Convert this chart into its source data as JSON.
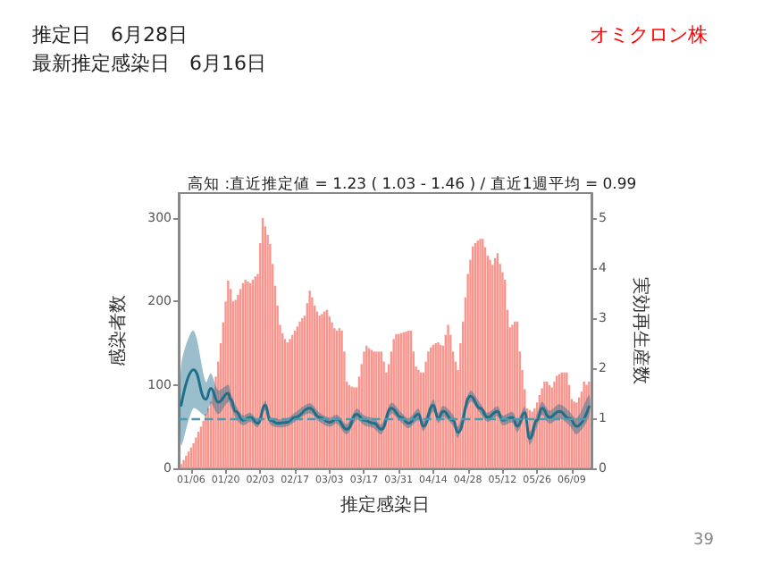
{
  "chart_data": {
    "type": "bar",
    "title": "高知 :直近推定値 = 1.23 ( 1.03 - 1.46 ) / 直近1週平均 = 0.99",
    "annotations": [
      "推定日　6月28日",
      "最新推定感染日　6月16日",
      "オミクロン株",
      "39"
    ],
    "xlabel": "推定感染日",
    "ylabel": "感染者数",
    "y2label": "実効再生産数",
    "xlim": [
      "--01-01",
      "--06-17"
    ],
    "xticks": [
      {
        "value": "--01-06",
        "label": "01/06"
      },
      {
        "value": "--01-20",
        "label": "01/20"
      },
      {
        "value": "--02-03",
        "label": "02/03"
      },
      {
        "value": "--02-17",
        "label": "02/17"
      },
      {
        "value": "--03-03",
        "label": "03/03"
      },
      {
        "value": "--03-17",
        "label": "03/17"
      },
      {
        "value": "--03-31",
        "label": "03/31"
      },
      {
        "value": "--04-14",
        "label": "04/14"
      },
      {
        "value": "--04-28",
        "label": "04/28"
      },
      {
        "value": "--05-12",
        "label": "05/12"
      },
      {
        "value": "--05-26",
        "label": "05/26"
      },
      {
        "value": "--06-09",
        "label": "06/09"
      }
    ],
    "ylim": [
      0,
      330
    ],
    "yticks": [
      0,
      100,
      200,
      300
    ],
    "y2lim": [
      0,
      5.5
    ],
    "y2ticks": [
      0,
      1,
      2,
      3,
      4,
      5
    ],
    "x": [
      "--01-02",
      "--01-03",
      "--01-04",
      "--01-05",
      "--01-06",
      "--01-07",
      "--01-08",
      "--01-09",
      "--01-10",
      "--01-11",
      "--01-12",
      "--01-13",
      "--01-14",
      "--01-15",
      "--01-16",
      "--01-17",
      "--01-18",
      "--01-19",
      "--01-20",
      "--01-21",
      "--01-22",
      "--01-23",
      "--01-24",
      "--01-25",
      "--01-26",
      "--01-27",
      "--01-28",
      "--01-29",
      "--01-30",
      "--01-31",
      "--02-01",
      "--02-02",
      "--02-03",
      "--02-04",
      "--02-05",
      "--02-06",
      "--02-07",
      "--02-08",
      "--02-09",
      "--02-10",
      "--02-11",
      "--02-12",
      "--02-13",
      "--02-14",
      "--02-15",
      "--02-16",
      "--02-17",
      "--02-18",
      "--02-19",
      "--02-20",
      "--02-21",
      "--02-22",
      "--02-23",
      "--02-24",
      "--02-25",
      "--02-26",
      "--02-27",
      "--02-28",
      "--03-01",
      "--03-02",
      "--03-03",
      "--03-04",
      "--03-05",
      "--03-06",
      "--03-07",
      "--03-08",
      "--03-09",
      "--03-10",
      "--03-11",
      "--03-12",
      "--03-13",
      "--03-14",
      "--03-15",
      "--03-16",
      "--03-17",
      "--03-18",
      "--03-19",
      "--03-20",
      "--03-21",
      "--03-22",
      "--03-23",
      "--03-24",
      "--03-25",
      "--03-26",
      "--03-27",
      "--03-28",
      "--03-29",
      "--03-30",
      "--03-31",
      "--04-01",
      "--04-02",
      "--04-03",
      "--04-04",
      "--04-05",
      "--04-06",
      "--04-07",
      "--04-08",
      "--04-09",
      "--04-10",
      "--04-11",
      "--04-12",
      "--04-13",
      "--04-14",
      "--04-15",
      "--04-16",
      "--04-17",
      "--04-18",
      "--04-19",
      "--04-20",
      "--04-21",
      "--04-22",
      "--04-23",
      "--04-24",
      "--04-25",
      "--04-26",
      "--04-27",
      "--04-28",
      "--04-29",
      "--04-30",
      "--05-01",
      "--05-02",
      "--05-03",
      "--05-04",
      "--05-05",
      "--05-06",
      "--05-07",
      "--05-08",
      "--05-09",
      "--05-10",
      "--05-11",
      "--05-12",
      "--05-13",
      "--05-14",
      "--05-15",
      "--05-16",
      "--05-17",
      "--05-18",
      "--05-19",
      "--05-20",
      "--05-21",
      "--05-22",
      "--05-23",
      "--05-24",
      "--05-25",
      "--05-26",
      "--05-27",
      "--05-28",
      "--05-29",
      "--05-30",
      "--05-31",
      "--06-01",
      "--06-02",
      "--06-03",
      "--06-04",
      "--06-05",
      "--06-06",
      "--06-07",
      "--06-08",
      "--06-09",
      "--06-10",
      "--06-11",
      "--06-12",
      "--06-13",
      "--06-14",
      "--06-15",
      "--06-16"
    ],
    "series": [
      {
        "color": "#f9958d",
        "values": [
          5,
          10,
          15,
          20,
          25,
          30,
          37,
          44,
          50,
          57,
          65,
          72,
          80,
          95,
          110,
          128,
          150,
          175,
          200,
          225,
          215,
          200,
          202,
          208,
          215,
          222,
          226,
          224,
          222,
          226,
          230,
          233,
          270,
          300,
          290,
          280,
          269,
          245,
          219,
          195,
          172,
          162,
          155,
          151,
          155,
          160,
          165,
          170,
          176,
          180,
          183,
          198,
          213,
          205,
          195,
          188,
          183,
          185,
          188,
          190,
          182,
          175,
          168,
          165,
          168,
          165,
          140,
          104,
          100,
          98,
          97,
          97,
          110,
          125,
          140,
          147,
          144,
          142,
          140,
          140,
          140,
          140,
          128,
          115,
          125,
          140,
          155,
          161,
          161,
          162,
          163,
          164,
          165,
          165,
          140,
          122,
          118,
          115,
          115,
          128,
          140,
          145,
          148,
          150,
          151,
          148,
          147,
          160,
          172,
          160,
          140,
          128,
          118,
          150,
          176,
          205,
          233,
          250,
          266,
          270,
          273,
          275,
          275,
          265,
          255,
          250,
          244,
          252,
          258,
          245,
          235,
          226,
          190,
          169,
          172,
          176,
          176,
          140,
          118,
          95,
          72,
          70,
          68,
          72,
          79,
          88,
          96,
          104,
          104,
          100,
          97,
          104,
          111,
          113,
          115,
          115,
          115,
          100,
          83,
          80,
          79,
          85,
          92,
          104,
          100,
          104
        ]
      },
      {
        "type": "line",
        "axis": "y2",
        "color": "#1f6f8b",
        "x": [
          "--01-02",
          "--01-07",
          "--01-12",
          "--01-14",
          "--01-17",
          "--01-21",
          "--01-22",
          "--01-24",
          "--01-27",
          "--01-30",
          "--02-02",
          "--02-05",
          "--02-07",
          "--02-10",
          "--02-14",
          "--02-17",
          "--02-23",
          "--02-27",
          "--03-03",
          "--03-06",
          "--03-10",
          "--03-14",
          "--03-17",
          "--03-21",
          "--03-24",
          "--03-28",
          "--04-01",
          "--04-04",
          "--04-08",
          "--04-10",
          "--04-14",
          "--04-16",
          "--04-18",
          "--04-22",
          "--04-24",
          "--04-29",
          "--05-03",
          "--05-06",
          "--05-10",
          "--05-12",
          "--05-16",
          "--05-18",
          "--05-21",
          "--05-23",
          "--05-26",
          "--05-28",
          "--05-31",
          "--06-04",
          "--06-08",
          "--06-11",
          "--06-16"
        ],
        "values": [
          1.26,
          1.97,
          1.38,
          1.6,
          1.32,
          1.5,
          1.38,
          1.14,
          0.96,
          1.02,
          0.9,
          1.26,
          0.96,
          0.9,
          0.92,
          1.02,
          1.2,
          1.02,
          0.92,
          0.98,
          0.78,
          1.08,
          0.96,
          0.9,
          0.78,
          1.2,
          1.02,
          0.9,
          1.08,
          0.84,
          1.26,
          1.0,
          1.14,
          0.96,
          0.72,
          1.44,
          1.2,
          1.02,
          1.14,
          0.96,
          1.02,
          0.84,
          1.11,
          0.6,
          0.96,
          1.2,
          1.02,
          1.14,
          1.0,
          0.84,
          1.23
        ],
        "lower": [
          0.46,
          1.2,
          1.05,
          1.3,
          1.08,
          1.33,
          1.24,
          1.01,
          0.86,
          0.93,
          0.82,
          1.17,
          0.88,
          0.82,
          0.84,
          0.93,
          1.1,
          0.93,
          0.83,
          0.89,
          0.68,
          0.97,
          0.86,
          0.8,
          0.68,
          1.09,
          0.92,
          0.8,
          0.97,
          0.74,
          1.14,
          0.9,
          1.03,
          0.85,
          0.61,
          1.33,
          1.1,
          0.93,
          1.04,
          0.86,
          0.91,
          0.72,
          0.99,
          0.47,
          0.83,
          1.07,
          0.89,
          1.0,
          0.86,
          0.68,
          1.03
        ],
        "upper": [
          2.06,
          2.75,
          1.72,
          1.9,
          1.56,
          1.67,
          1.52,
          1.27,
          1.06,
          1.11,
          0.98,
          1.35,
          1.04,
          0.98,
          1.0,
          1.11,
          1.3,
          1.11,
          1.01,
          1.07,
          0.88,
          1.19,
          1.06,
          1.0,
          0.88,
          1.31,
          1.12,
          1.0,
          1.19,
          0.94,
          1.38,
          1.1,
          1.25,
          1.07,
          0.83,
          1.55,
          1.3,
          1.11,
          1.24,
          1.06,
          1.13,
          0.96,
          1.23,
          0.73,
          1.09,
          1.33,
          1.15,
          1.28,
          1.14,
          1.0,
          1.46
        ]
      }
    ],
    "ref_lines": [
      {
        "axis": "y2",
        "value": 1,
        "color": "#4a9ab0",
        "line_style": "dashed"
      }
    ]
  }
}
